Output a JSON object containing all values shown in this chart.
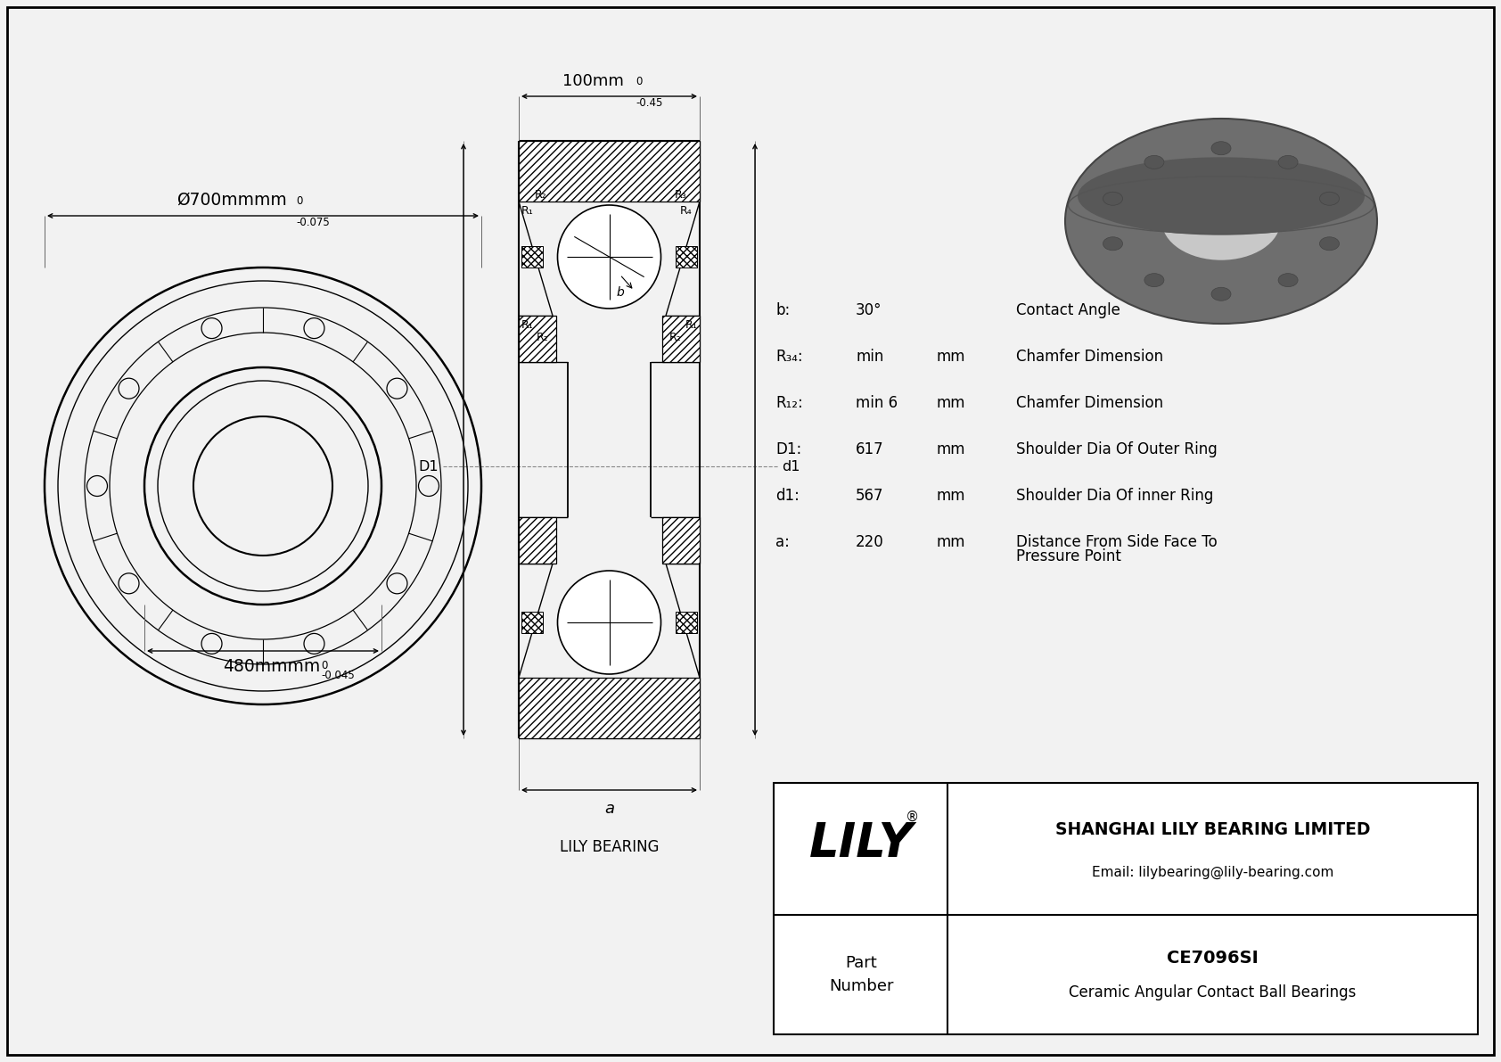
{
  "bg_color": "#f2f2f2",
  "line_color": "#000000",
  "dim_outer": "Ø700mm",
  "dim_outer_tol_upper": "0",
  "dim_outer_tol_lower": "-0.075",
  "dim_inner": "480mm",
  "dim_inner_tol_upper": "0",
  "dim_inner_tol_lower": "-0.045",
  "dim_width": "100mm",
  "dim_width_tol_upper": "0",
  "dim_width_tol_lower": "-0.45",
  "specs": [
    [
      "b:",
      "30°",
      "",
      "Contact Angle"
    ],
    [
      "R₃₄:",
      "min",
      "mm",
      "Chamfer Dimension"
    ],
    [
      "R₁₂:",
      "min 6",
      "mm",
      "Chamfer Dimension"
    ],
    [
      "D1:",
      "617",
      "mm",
      "Shoulder Dia Of Outer Ring"
    ],
    [
      "d1:",
      "567",
      "mm",
      "Shoulder Dia Of inner Ring"
    ],
    [
      "a:",
      "220",
      "mm",
      "Distance From Side Face To\nPressure Point"
    ]
  ],
  "company_name": "LILY",
  "company_full": "SHANGHAI LILY BEARING LIMITED",
  "company_email": "Email: lilybearing@lily-bearing.com",
  "part_number": "CE7096SI",
  "part_type": "Ceramic Angular Contact Ball Bearings",
  "lily_bearing_label": "LILY BEARING"
}
